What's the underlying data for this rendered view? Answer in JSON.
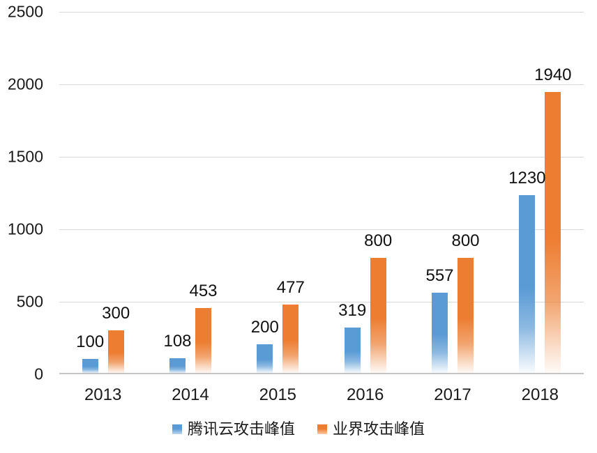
{
  "chart_data": {
    "type": "bar",
    "title": "",
    "xlabel": "",
    "ylabel": "",
    "categories": [
      "2013",
      "2014",
      "2015",
      "2016",
      "2017",
      "2018"
    ],
    "series": [
      {
        "name": "腾讯云攻击峰值",
        "color": "#5b9bd5",
        "values": [
          100,
          108,
          200,
          319,
          557,
          1230
        ]
      },
      {
        "name": "业界攻击峰值",
        "color": "#ed7d31",
        "values": [
          300,
          453,
          477,
          800,
          800,
          1940
        ]
      }
    ],
    "ylim": [
      0,
      2500
    ],
    "y_ticks": [
      0,
      500,
      1000,
      1500,
      2000,
      2500
    ],
    "grid": true,
    "gridline_color": "#d9d9d9",
    "axis_text_color": "#1a1a1a",
    "data_labels": true,
    "legend_position": "bottom"
  }
}
